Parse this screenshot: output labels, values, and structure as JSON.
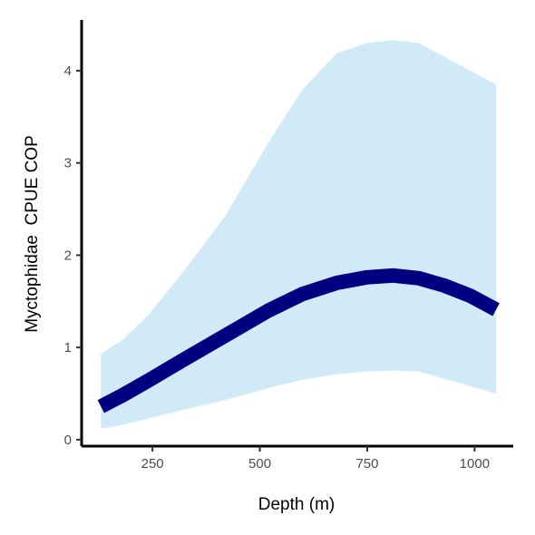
{
  "chart_data": {
    "type": "line",
    "xlabel": "Depth (m)",
    "ylabel": "Myctophidae  CPUE COP",
    "xlim": [
      85,
      1090
    ],
    "ylim": [
      -0.07,
      4.55
    ],
    "x_ticks": [
      {
        "value": 250,
        "label": "250"
      },
      {
        "value": 500,
        "label": "500"
      },
      {
        "value": 750,
        "label": "750"
      },
      {
        "value": 1000,
        "label": "1000"
      }
    ],
    "y_ticks": [
      {
        "value": 0,
        "label": "0"
      },
      {
        "value": 1,
        "label": "1"
      },
      {
        "value": 2,
        "label": "2"
      },
      {
        "value": 3,
        "label": "3"
      },
      {
        "value": 4,
        "label": "4"
      }
    ],
    "grid": false,
    "legend": "none",
    "series": [
      {
        "x": [
          130,
          180,
          240,
          320,
          420,
          520,
          600,
          680,
          750,
          810,
          870,
          930,
          990,
          1050
        ],
        "fit": [
          0.36,
          0.48,
          0.64,
          0.86,
          1.13,
          1.4,
          1.58,
          1.7,
          1.76,
          1.78,
          1.75,
          1.67,
          1.56,
          1.41
        ],
        "lower": [
          0.12,
          0.16,
          0.23,
          0.32,
          0.43,
          0.56,
          0.65,
          0.71,
          0.74,
          0.75,
          0.74,
          0.66,
          0.58,
          0.5
        ],
        "upper": [
          0.93,
          1.08,
          1.35,
          1.81,
          2.43,
          3.22,
          3.8,
          4.19,
          4.3,
          4.33,
          4.3,
          4.15,
          4.0,
          3.85
        ]
      }
    ],
    "colors": {
      "line": "#000080",
      "band": "#d1eaf7",
      "axis": "#000000",
      "tick_text": "#4d4d4d"
    }
  }
}
